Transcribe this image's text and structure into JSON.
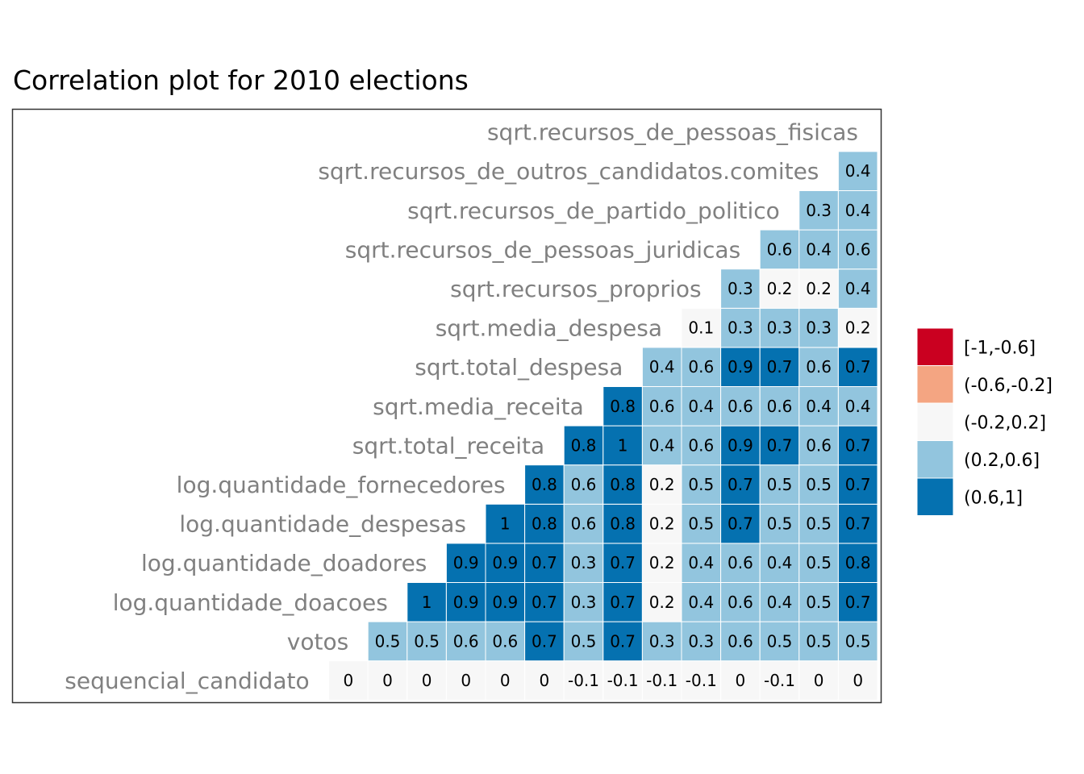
{
  "chart_data": {
    "type": "heatmap",
    "title": "Correlation plot for 2010 elections",
    "variables": [
      "sequencial_candidato",
      "votos",
      "log.quantidade_doacoes",
      "log.quantidade_doadores",
      "log.quantidade_despesas",
      "log.quantidade_fornecedores",
      "sqrt.total_receita",
      "sqrt.media_receita",
      "sqrt.total_despesa",
      "sqrt.media_despesa",
      "sqrt.recursos_proprios",
      "sqrt.recursos_de_pessoas_juridicas",
      "sqrt.recursos_de_partido_politico",
      "sqrt.recursos_de_outros_candidatos.comites",
      "sqrt.recursos_de_pessoas_fisicas"
    ],
    "rows": [
      {
        "variable": "sequencial_candidato",
        "values": [
          "0",
          "0",
          "0",
          "0",
          "0",
          "0",
          "-0.1",
          "-0.1",
          "-0.1",
          "-0.1",
          "0",
          "-0.1",
          "0",
          "0"
        ]
      },
      {
        "variable": "votos",
        "values": [
          "0.5",
          "0.5",
          "0.6",
          "0.6",
          "0.7",
          "0.5",
          "0.7",
          "0.3",
          "0.3",
          "0.6",
          "0.5",
          "0.5",
          "0.5"
        ]
      },
      {
        "variable": "log.quantidade_doacoes",
        "values": [
          "1",
          "0.9",
          "0.9",
          "0.7",
          "0.3",
          "0.7",
          "0.2",
          "0.4",
          "0.6",
          "0.4",
          "0.5",
          "0.7"
        ]
      },
      {
        "variable": "log.quantidade_doadores",
        "values": [
          "0.9",
          "0.9",
          "0.7",
          "0.3",
          "0.7",
          "0.2",
          "0.4",
          "0.6",
          "0.4",
          "0.5",
          "0.8"
        ]
      },
      {
        "variable": "log.quantidade_despesas",
        "values": [
          "1",
          "0.8",
          "0.6",
          "0.8",
          "0.2",
          "0.5",
          "0.7",
          "0.5",
          "0.5",
          "0.7"
        ]
      },
      {
        "variable": "log.quantidade_fornecedores",
        "values": [
          "0.8",
          "0.6",
          "0.8",
          "0.2",
          "0.5",
          "0.7",
          "0.5",
          "0.5",
          "0.7"
        ]
      },
      {
        "variable": "sqrt.total_receita",
        "values": [
          "0.8",
          "1",
          "0.4",
          "0.6",
          "0.9",
          "0.7",
          "0.6",
          "0.7"
        ]
      },
      {
        "variable": "sqrt.media_receita",
        "values": [
          "0.8",
          "0.6",
          "0.4",
          "0.6",
          "0.6",
          "0.4",
          "0.4"
        ]
      },
      {
        "variable": "sqrt.total_despesa",
        "values": [
          "0.4",
          "0.6",
          "0.9",
          "0.7",
          "0.6",
          "0.7"
        ]
      },
      {
        "variable": "sqrt.media_despesa",
        "values": [
          "0.1",
          "0.3",
          "0.3",
          "0.3",
          "0.2"
        ]
      },
      {
        "variable": "sqrt.recursos_proprios",
        "values": [
          "0.3",
          "0.2",
          "0.2",
          "0.4"
        ]
      },
      {
        "variable": "sqrt.recursos_de_pessoas_juridicas",
        "values": [
          "0.6",
          "0.4",
          "0.6"
        ]
      },
      {
        "variable": "sqrt.recursos_de_partido_politico",
        "values": [
          "0.3",
          "0.4"
        ]
      },
      {
        "variable": "sqrt.recursos_de_outros_candidatos.comites",
        "values": [
          "0.4"
        ]
      },
      {
        "variable": "sqrt.recursos_de_pessoas_fisicas",
        "values": []
      }
    ],
    "legend": {
      "position": "right",
      "entries": [
        {
          "label": "[-1,-0.6]",
          "color": "#ca0020"
        },
        {
          "label": "(-0.6,-0.2]",
          "color": "#f4a582"
        },
        {
          "label": "(-0.2,0.2]",
          "color": "#f7f7f7"
        },
        {
          "label": "(0.2,0.6]",
          "color": "#92c5de"
        },
        {
          "label": "(0.6,1]",
          "color": "#0571b0"
        }
      ]
    },
    "grid": false
  },
  "colors": {
    "label_text": "#808080",
    "cell_text": "#000000",
    "cell_border": "#ffffff",
    "panel_border": "#333333"
  }
}
